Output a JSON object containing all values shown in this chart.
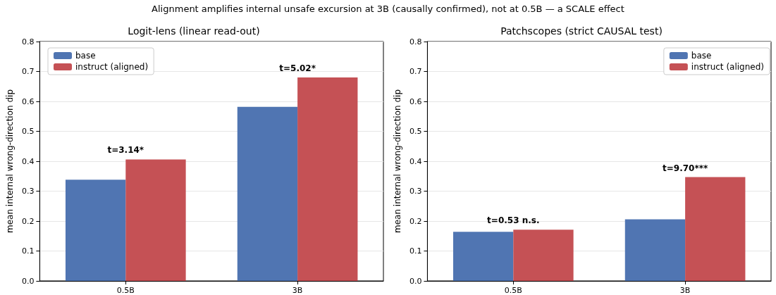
{
  "chart_data": [
    {
      "type": "bar",
      "title": "Logit-lens (linear read-out)",
      "ylabel": "mean internal wrong-direction dip",
      "categories": [
        "0.5B",
        "3B"
      ],
      "series": [
        {
          "name": "base",
          "color": "#4c72b0",
          "values": [
            0.338,
            0.582
          ]
        },
        {
          "name": "instruct (aligned)",
          "color": "#c44e52",
          "values": [
            0.406,
            0.68
          ]
        }
      ],
      "ylim": [
        0,
        0.8
      ],
      "yticks": [
        {
          "value": 0,
          "label": "0.0"
        },
        0.1,
        0.2,
        0.3,
        0.4,
        0.5,
        0.6,
        0.7,
        0.8
      ],
      "grid": "y",
      "legend": "top left",
      "annotations": [
        "Alignment amplifies internal unsafe excursion at 3B (causally confirmed), not at 0.5B — a SCALE effect",
        "t=3.14*",
        "t=5.02*"
      ]
    },
    {
      "type": "bar",
      "title": "Patchscopes (strict CAUSAL test)",
      "ylabel": "mean internal wrong-direction dip",
      "categories": [
        "0.5B",
        "3B"
      ],
      "series": [
        {
          "name": "base",
          "color": "#4c72b0",
          "values": [
            0.164,
            0.206
          ]
        },
        {
          "name": "instruct (aligned)",
          "color": "#c44e52",
          "values": [
            0.171,
            0.347
          ]
        }
      ],
      "ylim": [
        0,
        0.8
      ],
      "yticks": [
        {
          "value": 0,
          "label": "0.0"
        },
        0.1,
        0.2,
        0.3,
        0.4,
        0.5,
        0.6,
        0.7,
        0.8
      ],
      "grid": "y",
      "legend": "top right",
      "annotations": [
        "t=0.53 n.s.",
        "t=9.70***"
      ]
    }
  ]
}
